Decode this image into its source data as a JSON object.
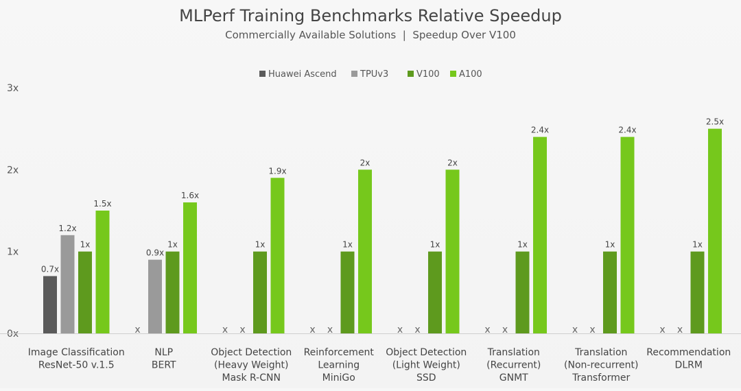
{
  "chart_data": {
    "type": "bar",
    "title": "MLPerf Training Benchmarks Relative Speedup",
    "subtitle": "Commercially Available Solutions  |  Speedup Over V100",
    "ylim": [
      0,
      3
    ],
    "yticks": [
      {
        "value": 0,
        "label": "0x"
      },
      {
        "value": 1,
        "label": "1x"
      },
      {
        "value": 2,
        "label": "2x"
      },
      {
        "value": 3,
        "label": "3x"
      }
    ],
    "grid": false,
    "legend_position": "top-center",
    "not_available_marker": "x",
    "categories": [
      [
        "Image Classification",
        "ResNet-50 v.1.5"
      ],
      [
        "NLP",
        "BERT"
      ],
      [
        "Object Detection",
        "(Heavy Weight)",
        "Mask R-CNN"
      ],
      [
        "Reinforcement",
        "Learning",
        "MiniGo"
      ],
      [
        "Object Detection",
        "(Light Weight)",
        "SSD"
      ],
      [
        "Translation",
        "(Recurrent)",
        "GNMT"
      ],
      [
        "Translation",
        "(Non-recurrent)",
        "Transformer"
      ],
      [
        "Recommendation",
        "DLRM"
      ]
    ],
    "series": [
      {
        "name": "Huawei Ascend",
        "color": "#5a5a5a",
        "values": [
          0.7,
          null,
          null,
          null,
          null,
          null,
          null,
          null
        ],
        "labels": [
          "0.7x",
          "",
          "",
          "",
          "",
          "",
          "",
          ""
        ]
      },
      {
        "name": "TPUv3",
        "color": "#9a9a9a",
        "values": [
          1.2,
          0.9,
          null,
          null,
          null,
          null,
          null,
          null
        ],
        "labels": [
          "1.2x",
          "0.9x",
          "",
          "",
          "",
          "",
          "",
          ""
        ]
      },
      {
        "name": "V100",
        "color": "#5e9a1e",
        "values": [
          1,
          1,
          1,
          1,
          1,
          1,
          1,
          1
        ],
        "labels": [
          "1x",
          "1x",
          "1x",
          "1x",
          "1x",
          "1x",
          "1x",
          "1x"
        ]
      },
      {
        "name": "A100",
        "color": "#76c81c",
        "values": [
          1.5,
          1.6,
          1.9,
          2,
          2,
          2.4,
          2.4,
          2.5
        ],
        "labels": [
          "1.5x",
          "1.6x",
          "1.9x",
          "2x",
          "2x",
          "2.4x",
          "2.4x",
          "2.5x"
        ]
      }
    ]
  }
}
